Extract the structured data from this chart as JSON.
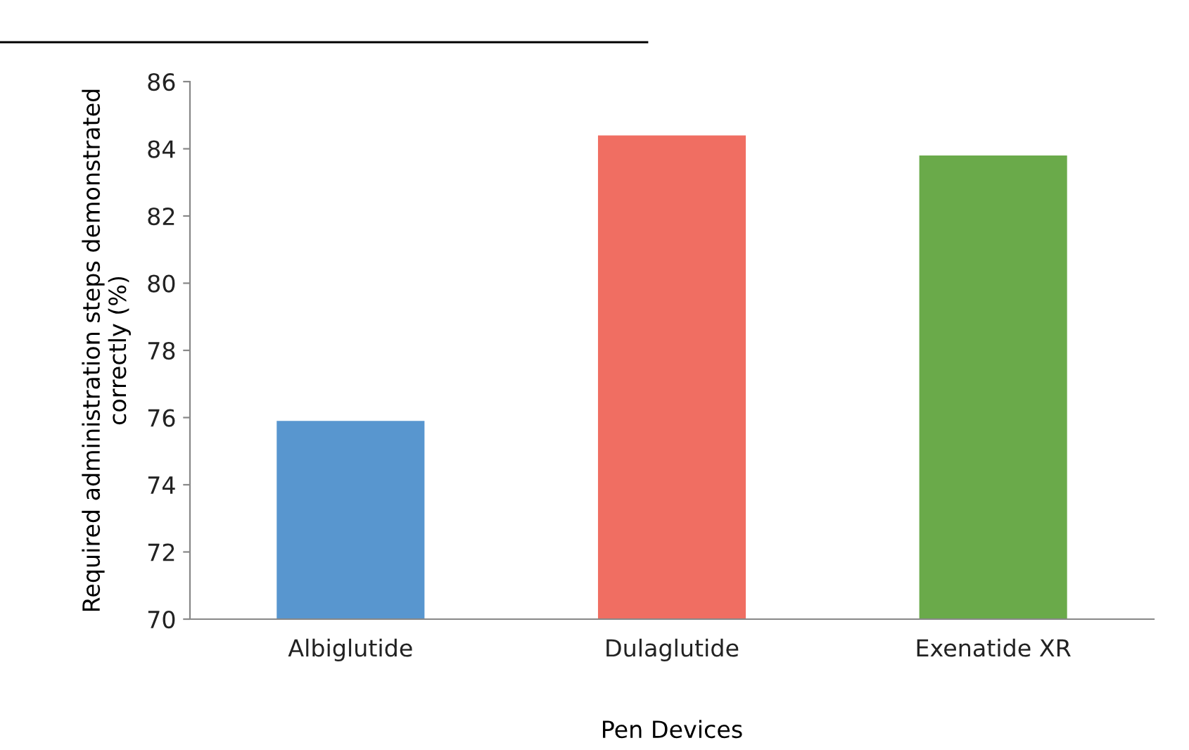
{
  "chart_data": {
    "type": "bar",
    "xlabel": "Pen Devices",
    "ylabel": "Required administration steps demonstrated\ncorrectly (%)",
    "categories": [
      "Albiglutide",
      "Dulaglutide",
      "Exenatide XR"
    ],
    "values": [
      75.9,
      84.4,
      83.8
    ],
    "colors": [
      "#5896cf",
      "#f06e62",
      "#6aaa4a"
    ],
    "ylim": [
      70,
      86
    ],
    "yticks": [
      70,
      72,
      74,
      76,
      78,
      80,
      82,
      84,
      86
    ],
    "grid": false,
    "legend": false
  }
}
